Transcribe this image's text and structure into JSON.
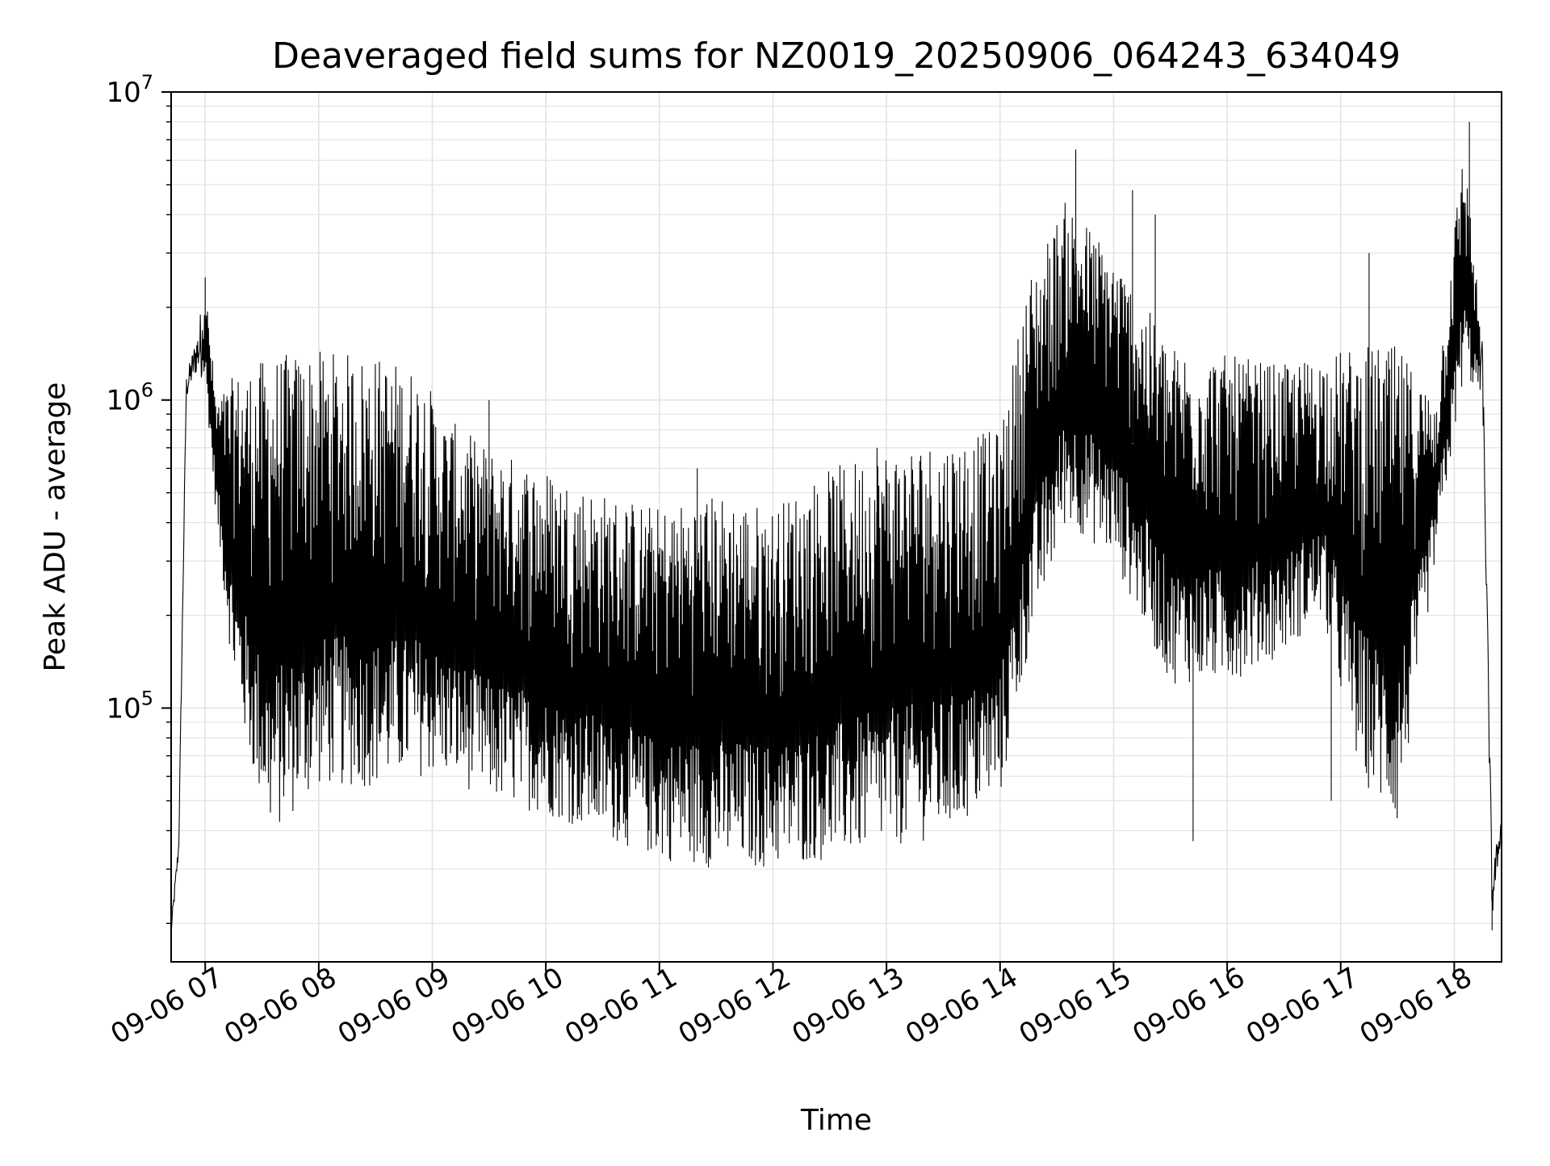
{
  "chart_data": {
    "type": "line",
    "title": "Deaveraged field sums for NZ0019_20250906_064243_634049",
    "xlabel": "Time",
    "ylabel": "Peak ADU - average",
    "yscale": "log",
    "xlim": [
      "2025-09-06 06:42",
      "2025-09-06 18:25"
    ],
    "ylim": [
      15000,
      10000000
    ],
    "grid": true,
    "line_color": "#000000",
    "x_ticks": [
      {
        "label": "09-06 07",
        "value": "2025-09-06 07:00"
      },
      {
        "label": "09-06 08",
        "value": "2025-09-06 08:00"
      },
      {
        "label": "09-06 09",
        "value": "2025-09-06 09:00"
      },
      {
        "label": "09-06 10",
        "value": "2025-09-06 10:00"
      },
      {
        "label": "09-06 11",
        "value": "2025-09-06 11:00"
      },
      {
        "label": "09-06 12",
        "value": "2025-09-06 12:00"
      },
      {
        "label": "09-06 13",
        "value": "2025-09-06 13:00"
      },
      {
        "label": "09-06 14",
        "value": "2025-09-06 14:00"
      },
      {
        "label": "09-06 15",
        "value": "2025-09-06 15:00"
      },
      {
        "label": "09-06 16",
        "value": "2025-09-06 16:00"
      },
      {
        "label": "09-06 17",
        "value": "2025-09-06 17:00"
      },
      {
        "label": "09-06 18",
        "value": "2025-09-06 18:00"
      }
    ],
    "y_ticks": [
      {
        "base": "10",
        "exp": "5",
        "value": 100000
      },
      {
        "base": "10",
        "exp": "6",
        "value": 1000000
      },
      {
        "base": "10",
        "exp": "7",
        "value": 10000000
      }
    ],
    "series": [
      {
        "style": "dense oscillating envelope",
        "envelope": [
          {
            "x": "2025-09-06 06:42",
            "low": 18000,
            "high": 20000
          },
          {
            "x": "2025-09-06 06:46",
            "low": 33000,
            "high": 38000
          },
          {
            "x": "2025-09-06 06:50",
            "low": 1000000,
            "high": 1200000
          },
          {
            "x": "2025-09-06 06:55",
            "low": 1200000,
            "high": 1600000
          },
          {
            "x": "2025-09-06 07:00",
            "low": 1150000,
            "high": 2400000
          },
          {
            "x": "2025-09-06 07:06",
            "low": 400000,
            "high": 1000000
          },
          {
            "x": "2025-09-06 07:15",
            "low": 120000,
            "high": 1200000
          },
          {
            "x": "2025-09-06 07:25",
            "low": 60000,
            "high": 1300000
          },
          {
            "x": "2025-09-06 07:35",
            "low": 38000,
            "high": 1400000
          },
          {
            "x": "2025-09-06 08:00",
            "low": 55000,
            "high": 1450000
          },
          {
            "x": "2025-09-06 08:30",
            "low": 55000,
            "high": 1400000
          },
          {
            "x": "2025-09-06 08:55",
            "low": 60000,
            "high": 1250000
          },
          {
            "x": "2025-09-06 09:05",
            "low": 60000,
            "high": 900000
          },
          {
            "x": "2025-09-06 09:30",
            "low": 50000,
            "high": 700000
          },
          {
            "x": "2025-09-06 10:00",
            "low": 45000,
            "high": 600000
          },
          {
            "x": "2025-09-06 10:30",
            "low": 38000,
            "high": 500000
          },
          {
            "x": "2025-09-06 11:00",
            "low": 32000,
            "high": 450000
          },
          {
            "x": "2025-09-06 11:30",
            "low": 30000,
            "high": 500000
          },
          {
            "x": "2025-09-06 12:00",
            "low": 30000,
            "high": 450000
          },
          {
            "x": "2025-09-06 12:30",
            "low": 32000,
            "high": 600000
          },
          {
            "x": "2025-09-06 13:00",
            "low": 35000,
            "high": 700000
          },
          {
            "x": "2025-09-06 13:30",
            "low": 38000,
            "high": 750000
          },
          {
            "x": "2025-09-06 14:00",
            "low": 50000,
            "high": 800000
          },
          {
            "x": "2025-09-06 14:15",
            "low": 150000,
            "high": 2500000
          },
          {
            "x": "2025-09-06 14:35",
            "low": 400000,
            "high": 4500000
          },
          {
            "x": "2025-09-06 15:00",
            "low": 300000,
            "high": 3000000
          },
          {
            "x": "2025-09-06 15:30",
            "low": 120000,
            "high": 1500000
          },
          {
            "x": "2025-09-06 16:00",
            "low": 120000,
            "high": 1400000
          },
          {
            "x": "2025-09-06 16:30",
            "low": 150000,
            "high": 1300000
          },
          {
            "x": "2025-09-06 16:50",
            "low": 200000,
            "high": 1400000
          },
          {
            "x": "2025-09-06 17:10",
            "low": 60000,
            "high": 1500000
          },
          {
            "x": "2025-09-06 17:30",
            "low": 40000,
            "high": 1500000
          },
          {
            "x": "2025-09-06 17:50",
            "low": 300000,
            "high": 1000000
          },
          {
            "x": "2025-09-06 18:05",
            "low": 1200000,
            "high": 7000000
          },
          {
            "x": "2025-09-06 18:15",
            "low": 1000000,
            "high": 1500000
          },
          {
            "x": "2025-09-06 18:20",
            "low": 20000,
            "high": 30000
          },
          {
            "x": "2025-09-06 18:25",
            "low": 40000,
            "high": 45000
          }
        ],
        "spikes": [
          {
            "x": "2025-09-06 07:00",
            "value": 2500000
          },
          {
            "x": "2025-09-06 09:30",
            "value": 1000000
          },
          {
            "x": "2025-09-06 11:20",
            "value": 600000
          },
          {
            "x": "2025-09-06 12:55",
            "value": 700000
          },
          {
            "x": "2025-09-06 14:40",
            "value": 6500000
          },
          {
            "x": "2025-09-06 15:10",
            "value": 4800000
          },
          {
            "x": "2025-09-06 15:22",
            "value": 4000000
          },
          {
            "x": "2025-09-06 17:15",
            "value": 3000000
          },
          {
            "x": "2025-09-06 18:08",
            "value": 8000000
          },
          {
            "x": "2025-09-06 15:42",
            "value": 37000
          },
          {
            "x": "2025-09-06 16:55",
            "value": 50000
          },
          {
            "x": "2025-09-06 18:20",
            "value": 19000
          }
        ]
      }
    ]
  }
}
